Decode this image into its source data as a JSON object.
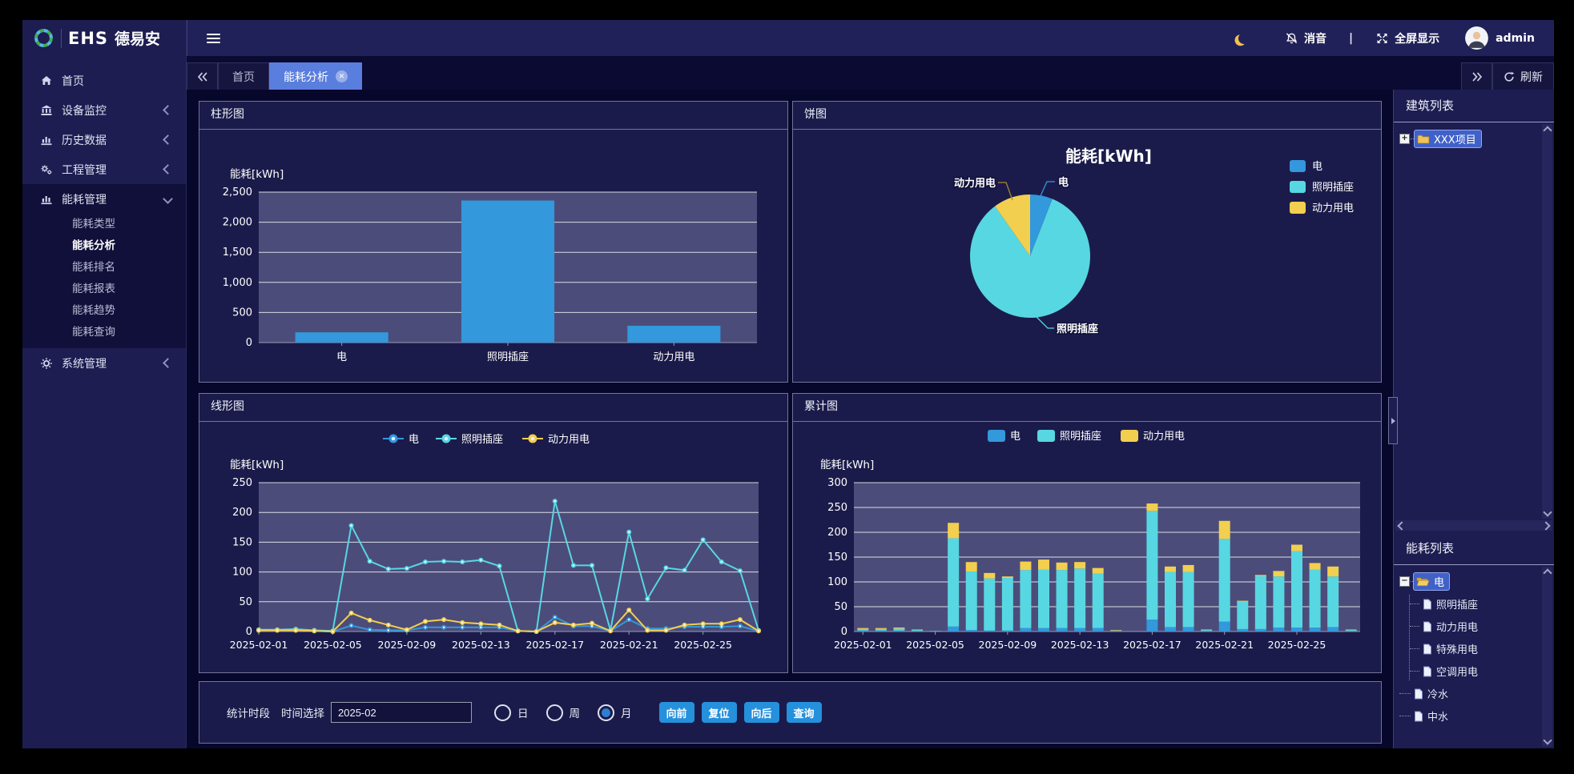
{
  "brand": {
    "logo_text": "EHS",
    "brand_name": "德易安"
  },
  "topbar": {
    "mute": "消音",
    "separator": "|",
    "fullscreen": "全屏显示",
    "user": "admin"
  },
  "tabbar": {
    "tabs": [
      {
        "key": "home",
        "label": "首页",
        "active": false,
        "closable": false
      },
      {
        "key": "energy-analysis",
        "label": "能耗分析",
        "active": true,
        "closable": true
      }
    ],
    "refresh": "刷新"
  },
  "sidebar": {
    "items": [
      {
        "key": "home",
        "label": "首页",
        "icon": "home-icon",
        "icon_key": "home",
        "collapsible": false
      },
      {
        "key": "device-monitor",
        "label": "设备监控",
        "icon": "bank-icon",
        "icon_key": "bank",
        "collapsible": true
      },
      {
        "key": "history-data",
        "label": "历史数据",
        "icon": "bar-chart-icon",
        "icon_key": "chart",
        "collapsible": true
      },
      {
        "key": "project-management",
        "label": "工程管理",
        "icon": "gears-icon",
        "icon_key": "gears",
        "collapsible": true
      },
      {
        "key": "energy-management",
        "label": "能耗管理",
        "icon": "bar-chart-icon",
        "icon_key": "chart",
        "collapsible": true,
        "expanded": true,
        "children": [
          {
            "key": "energy-type",
            "label": "能耗类型",
            "active": false
          },
          {
            "key": "energy-analysis",
            "label": "能耗分析",
            "active": true
          },
          {
            "key": "energy-ranking",
            "label": "能耗排名",
            "active": false
          },
          {
            "key": "energy-report",
            "label": "能耗报表",
            "active": false
          },
          {
            "key": "energy-trend",
            "label": "能耗趋势",
            "active": false
          },
          {
            "key": "energy-query",
            "label": "能耗查询",
            "active": false
          }
        ]
      },
      {
        "key": "system-management",
        "label": "系统管理",
        "icon": "gear-icon",
        "icon_key": "gear",
        "collapsible": true
      }
    ]
  },
  "panels": {
    "bar_title": "柱形图",
    "pie_title": "饼图",
    "line_title": "线形图",
    "stack_title": "累计图"
  },
  "right_panel": {
    "building_title": "建筑列表",
    "building_tree": [
      {
        "key": "xxx-project",
        "label": "XXX项目",
        "icon": "folder-icon",
        "selected": true,
        "expandable": true,
        "expanded": false
      }
    ],
    "energy_title": "能耗列表",
    "energy_tree": [
      {
        "key": "electric",
        "label": "电",
        "icon": "folder-open-icon",
        "selected": true,
        "expandable": true,
        "expanded": true,
        "children": [
          {
            "key": "lighting-socket",
            "label": "照明插座"
          },
          {
            "key": "power-electric",
            "label": "动力用电"
          },
          {
            "key": "special-electric",
            "label": "特殊用电"
          },
          {
            "key": "hvac-electric",
            "label": "空调用电"
          }
        ]
      },
      {
        "key": "cold-water",
        "label": "冷水"
      },
      {
        "key": "reclaimed-water",
        "label": "中水"
      }
    ]
  },
  "controls": {
    "period_label": "统计时段",
    "time_label": "时间选择",
    "time_value": "2025-02",
    "radios": [
      {
        "key": "day",
        "label": "日",
        "checked": false
      },
      {
        "key": "week",
        "label": "周",
        "checked": false
      },
      {
        "key": "month",
        "label": "月",
        "checked": true
      }
    ],
    "buttons": [
      {
        "key": "backward",
        "label": "向前"
      },
      {
        "key": "reset",
        "label": "复位"
      },
      {
        "key": "forward",
        "label": "向后"
      },
      {
        "key": "query",
        "label": "查询"
      }
    ]
  },
  "colors": {
    "series_electric": "#3398dc",
    "series_lighting": "#57d7e2",
    "series_power": "#f2cf4e",
    "plot_bg": "#4c4c7a",
    "accent_tab": "#5a7edd",
    "button_blue": "#2590dc"
  },
  "chart_data": [
    {
      "id": "bar",
      "type": "bar",
      "title": "柱形图",
      "ylabel": "能耗[kWh]",
      "categories": [
        "电",
        "照明插座",
        "动力用电"
      ],
      "values": [
        170,
        2360,
        280
      ],
      "ylim": [
        0,
        2500
      ],
      "ytick_step": 500,
      "grid": true,
      "bar_color": "#3398dc"
    },
    {
      "id": "pie",
      "type": "pie",
      "title": "能耗[kWh]",
      "legend_position": "right",
      "labels": [
        "电",
        "照明插座",
        "动力用电"
      ],
      "values": [
        170,
        2360,
        280
      ],
      "percents": [
        6,
        84,
        10
      ],
      "colors": [
        "#3398dc",
        "#57d7e2",
        "#f2cf4e"
      ]
    },
    {
      "id": "line",
      "type": "line",
      "title": "线形图",
      "ylabel": "能耗[kWh]",
      "ylim": [
        0,
        250
      ],
      "ytick_step": 50,
      "grid": true,
      "legend_position": "top",
      "x": [
        "2025-02-01",
        "2025-02-02",
        "2025-02-03",
        "2025-02-04",
        "2025-02-05",
        "2025-02-06",
        "2025-02-07",
        "2025-02-08",
        "2025-02-09",
        "2025-02-10",
        "2025-02-11",
        "2025-02-12",
        "2025-02-13",
        "2025-02-14",
        "2025-02-15",
        "2025-02-16",
        "2025-02-17",
        "2025-02-18",
        "2025-02-19",
        "2025-02-20",
        "2025-02-21",
        "2025-02-22",
        "2025-02-23",
        "2025-02-24",
        "2025-02-25",
        "2025-02-26",
        "2025-02-27",
        "2025-02-28"
      ],
      "x_tick_indices": [
        0,
        4,
        8,
        12,
        16,
        20,
        24
      ],
      "series": [
        {
          "name": "电",
          "color": "#3398dc",
          "values": [
            2,
            2,
            2,
            1,
            0,
            10,
            3,
            2,
            2,
            7,
            7,
            7,
            7,
            7,
            1,
            0,
            24,
            9,
            9,
            1,
            20,
            5,
            5,
            8,
            8,
            8,
            9,
            1
          ]
        },
        {
          "name": "照明插座",
          "color": "#57d7e2",
          "values": [
            3,
            3,
            4,
            2,
            1,
            178,
            118,
            105,
            106,
            117,
            118,
            117,
            120,
            110,
            1,
            0,
            219,
            111,
            111,
            2,
            167,
            55,
            107,
            103,
            154,
            117,
            102,
            2
          ]
        },
        {
          "name": "动力用电",
          "color": "#f2cf4e",
          "values": [
            2,
            2,
            2,
            1,
            0,
            31,
            19,
            11,
            3,
            17,
            20,
            15,
            13,
            11,
            1,
            0,
            15,
            11,
            14,
            1,
            36,
            2,
            2,
            11,
            13,
            13,
            20,
            1
          ]
        }
      ]
    },
    {
      "id": "stack",
      "type": "stacked_bar",
      "title": "累计图",
      "ylabel": "能耗[kWh]",
      "ylim": [
        0,
        300
      ],
      "ytick_step": 50,
      "grid": true,
      "legend_position": "top",
      "x": [
        "2025-02-01",
        "2025-02-02",
        "2025-02-03",
        "2025-02-04",
        "2025-02-05",
        "2025-02-06",
        "2025-02-07",
        "2025-02-08",
        "2025-02-09",
        "2025-02-10",
        "2025-02-11",
        "2025-02-12",
        "2025-02-13",
        "2025-02-14",
        "2025-02-15",
        "2025-02-16",
        "2025-02-17",
        "2025-02-18",
        "2025-02-19",
        "2025-02-20",
        "2025-02-21",
        "2025-02-22",
        "2025-02-23",
        "2025-02-24",
        "2025-02-25",
        "2025-02-26",
        "2025-02-27",
        "2025-02-28"
      ],
      "x_tick_indices": [
        0,
        4,
        8,
        12,
        16,
        20,
        24
      ],
      "series": [
        {
          "name": "电",
          "color": "#3398dc",
          "values": [
            2,
            2,
            2,
            1,
            0,
            10,
            3,
            2,
            2,
            7,
            7,
            7,
            7,
            7,
            1,
            0,
            24,
            9,
            9,
            1,
            20,
            5,
            5,
            8,
            8,
            8,
            9,
            1
          ]
        },
        {
          "name": "照明插座",
          "color": "#57d7e2",
          "values": [
            3,
            3,
            4,
            2,
            1,
            178,
            118,
            105,
            106,
            117,
            118,
            117,
            120,
            110,
            1,
            0,
            219,
            111,
            111,
            2,
            167,
            55,
            107,
            103,
            154,
            117,
            102,
            2
          ]
        },
        {
          "name": "动力用电",
          "color": "#f2cf4e",
          "values": [
            2,
            2,
            2,
            1,
            0,
            31,
            19,
            11,
            3,
            17,
            20,
            15,
            13,
            11,
            1,
            0,
            15,
            11,
            14,
            1,
            36,
            2,
            2,
            11,
            13,
            13,
            20,
            1
          ]
        }
      ]
    }
  ]
}
